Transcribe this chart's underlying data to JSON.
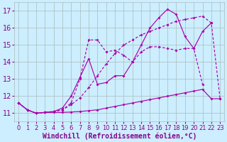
{
  "background_color": "#cceeff",
  "grid_color": "#aabbbb",
  "line_color": "#aa00aa",
  "xlabel": "Windchill (Refroidissement éolien,°C)",
  "xlabel_fontsize": 7,
  "ytick_fontsize": 7,
  "xtick_fontsize": 6,
  "ylim": [
    10.5,
    17.5
  ],
  "xlim": [
    -0.5,
    23.5
  ],
  "yticks": [
    11,
    12,
    13,
    14,
    15,
    16,
    17
  ],
  "xticks": [
    0,
    1,
    2,
    3,
    4,
    5,
    6,
    7,
    8,
    9,
    10,
    11,
    12,
    13,
    14,
    15,
    16,
    17,
    18,
    19,
    20,
    21,
    22,
    23
  ],
  "s1_x": [
    0,
    1,
    2,
    3,
    4,
    5,
    6,
    7,
    8,
    9,
    10,
    11,
    12,
    13,
    14,
    15,
    16,
    17,
    18,
    19,
    20,
    21,
    22,
    23
  ],
  "s1_y": [
    11.6,
    11.2,
    11.0,
    11.05,
    11.05,
    11.05,
    11.07,
    11.1,
    11.15,
    11.2,
    11.3,
    11.4,
    11.5,
    11.6,
    11.7,
    11.8,
    11.9,
    12.0,
    12.1,
    12.2,
    12.3,
    12.4,
    11.85,
    11.85
  ],
  "s1_style": "-",
  "s2_x": [
    0,
    1,
    2,
    3,
    4,
    5,
    6,
    7,
    8,
    9,
    10,
    11,
    12,
    13,
    14,
    15,
    16,
    17,
    18,
    19,
    20,
    21,
    22,
    23
  ],
  "s2_y": [
    11.6,
    11.2,
    11.0,
    11.05,
    11.1,
    11.2,
    11.5,
    11.9,
    12.5,
    13.2,
    13.9,
    14.5,
    15.0,
    15.3,
    15.6,
    15.8,
    16.0,
    16.2,
    16.4,
    16.5,
    16.6,
    16.7,
    16.3,
    11.85
  ],
  "s2_style": "--",
  "s3_x": [
    0,
    1,
    2,
    3,
    4,
    5,
    6,
    7,
    8,
    9,
    10,
    11,
    12,
    13,
    14,
    15,
    16,
    17,
    18,
    19,
    20,
    21,
    22,
    23
  ],
  "s3_y": [
    11.6,
    11.2,
    11.0,
    11.05,
    11.1,
    11.2,
    11.6,
    13.0,
    15.3,
    15.3,
    14.6,
    14.7,
    14.4,
    14.0,
    14.6,
    14.9,
    14.9,
    14.8,
    14.7,
    14.8,
    14.8,
    12.7,
    null,
    null
  ],
  "s3_style": "--",
  "s4_x": [
    0,
    1,
    2,
    3,
    4,
    5,
    6,
    7,
    8,
    9,
    10,
    11,
    12,
    13,
    14,
    15,
    16,
    17,
    18,
    19,
    20,
    21,
    22,
    23
  ],
  "s4_y": [
    11.6,
    11.2,
    11.0,
    11.05,
    11.1,
    11.3,
    12.0,
    13.1,
    14.2,
    12.7,
    12.8,
    13.2,
    13.2,
    14.0,
    15.0,
    16.0,
    16.6,
    17.1,
    16.8,
    15.5,
    14.8,
    15.8,
    16.3,
    null
  ],
  "s4_style": "-"
}
